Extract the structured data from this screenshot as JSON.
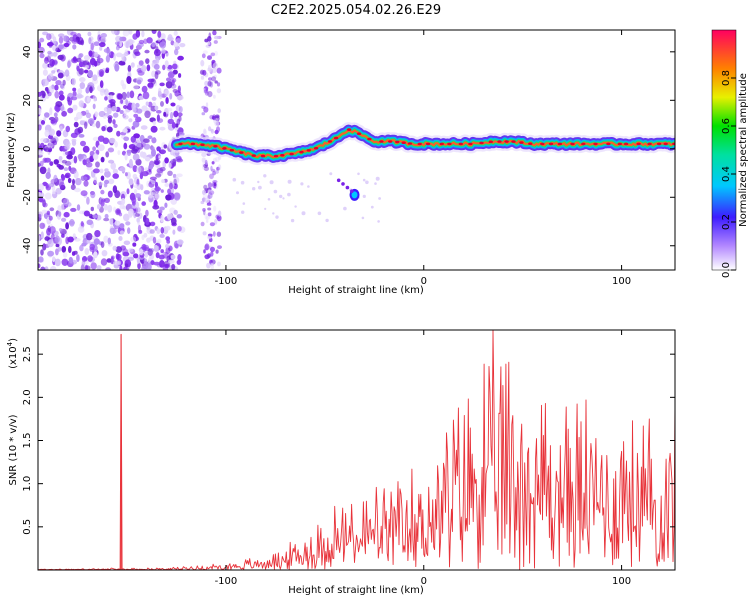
{
  "title": "C2E2.2025.054.02.26.E29",
  "chart_data": [
    {
      "type": "heatmap",
      "xlabel": "Height of straight line (km)",
      "ylabel": "Frequency (Hz)",
      "xlim": [
        -195,
        127
      ],
      "ylim": [
        -50,
        49
      ],
      "xticks": [
        -100,
        0,
        100
      ],
      "yticks": [
        -40,
        -20,
        0,
        20,
        40
      ],
      "colorbar": {
        "label": "Normalized spectral amplitude",
        "range": [
          0,
          1
        ],
        "ticks": [
          "0.0",
          "0.2",
          "0.4",
          "0.6",
          "0.8"
        ]
      },
      "ridge_frequency_hz": {
        "x": [
          -125,
          -115,
          -105,
          -95,
          -85,
          -75,
          -65,
          -55,
          -45,
          -38,
          -32,
          -25,
          -15,
          -5,
          5,
          15,
          25,
          35,
          45,
          55,
          65,
          75,
          85,
          95,
          105,
          115,
          127
        ],
        "y": [
          2,
          2,
          1,
          -1,
          -3,
          -3,
          -2,
          0,
          4,
          8,
          6,
          3,
          3,
          2,
          2,
          2,
          2,
          3,
          3,
          2,
          2,
          2,
          2,
          2,
          2,
          2,
          2
        ]
      },
      "secondary_feature": {
        "x": -35,
        "y": -19
      }
    },
    {
      "type": "line",
      "xlabel": "Height of straight line (km)",
      "ylabel": "SNR (10 * v/v)",
      "multiplier_label": "(x10",
      "multiplier_exp": "4",
      "multiplier_close": ")",
      "xlim": [
        -195,
        127
      ],
      "ylim": [
        0,
        2.78
      ],
      "xticks": [
        -100,
        0,
        100
      ],
      "yticks": [
        "0.5",
        "1.0",
        "1.5",
        "2.0",
        "2.5"
      ],
      "color": "#e8333a",
      "spike": {
        "x": -153,
        "y": 2.73
      },
      "envelope": {
        "x": [
          -195,
          -130,
          -110,
          -90,
          -80,
          -70,
          -60,
          -50,
          -40,
          -30,
          -20,
          -10,
          0,
          10,
          20,
          30,
          40,
          50,
          60,
          70,
          80,
          90,
          100,
          110,
          120,
          127
        ],
        "y": [
          0.01,
          0.02,
          0.05,
          0.1,
          0.15,
          0.22,
          0.35,
          0.55,
          0.7,
          0.8,
          0.75,
          0.8,
          1.1,
          1.3,
          1.7,
          2.0,
          2.1,
          1.9,
          1.8,
          1.7,
          1.6,
          1.5,
          1.5,
          1.45,
          1.45,
          1.45
        ]
      }
    }
  ]
}
